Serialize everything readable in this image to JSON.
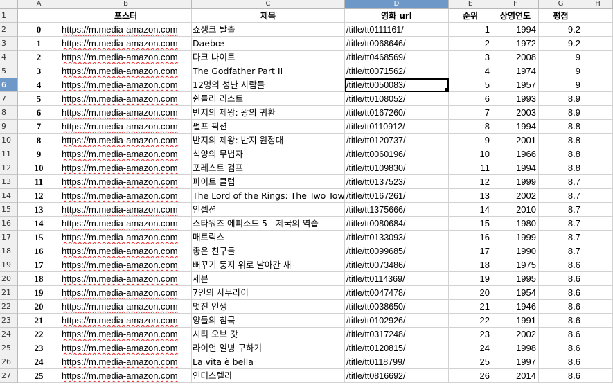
{
  "column_headers": [
    "A",
    "B",
    "C",
    "D",
    "E",
    "F",
    "G",
    "H"
  ],
  "selected_column": "D",
  "header_row": {
    "row_label": "1",
    "a": "",
    "b": "포스터",
    "c": "제목",
    "d": "영화 url",
    "e": "순위",
    "f": "상영연도",
    "g": "평점",
    "h": ""
  },
  "selected_row_label": "6",
  "rows": [
    {
      "label": "2",
      "a": "0",
      "b": "https://m.media-amazon.com",
      "c": "쇼생크 탈출",
      "d": "/title/tt0111161/",
      "e": "1",
      "f": "1994",
      "g": "9.2"
    },
    {
      "label": "3",
      "a": "1",
      "b": "https://m.media-amazon.com",
      "c": "Daebœ",
      "d": "/title/tt0068646/",
      "e": "2",
      "f": "1972",
      "g": "9.2"
    },
    {
      "label": "4",
      "a": "2",
      "b": "https://m.media-amazon.com",
      "c": "다크 나이트",
      "d": "/title/tt0468569/",
      "e": "3",
      "f": "2008",
      "g": "9"
    },
    {
      "label": "5",
      "a": "3",
      "b": "https://m.media-amazon.com",
      "c": "The Godfather Part II",
      "d": "/title/tt0071562/",
      "e": "4",
      "f": "1974",
      "g": "9"
    },
    {
      "label": "6",
      "a": "4",
      "b": "https://m.media-amazon.com",
      "c": "12명의 성난 사람들",
      "d": "/title/tt0050083/",
      "e": "5",
      "f": "1957",
      "g": "9"
    },
    {
      "label": "7",
      "a": "5",
      "b": "https://m.media-amazon.com",
      "c": "쉰들러 리스트",
      "d": "/title/tt0108052/",
      "e": "6",
      "f": "1993",
      "g": "8.9"
    },
    {
      "label": "8",
      "a": "6",
      "b": "https://m.media-amazon.com",
      "c": "반지의 제왕: 왕의 귀환",
      "d": "/title/tt0167260/",
      "e": "7",
      "f": "2003",
      "g": "8.9"
    },
    {
      "label": "9",
      "a": "7",
      "b": "https://m.media-amazon.com",
      "c": "펄프 픽션",
      "d": "/title/tt0110912/",
      "e": "8",
      "f": "1994",
      "g": "8.8"
    },
    {
      "label": "10",
      "a": "8",
      "b": "https://m.media-amazon.com",
      "c": "반지의 제왕: 반지 원정대",
      "d": "/title/tt0120737/",
      "e": "9",
      "f": "2001",
      "g": "8.8"
    },
    {
      "label": "11",
      "a": "9",
      "b": "https://m.media-amazon.com",
      "c": "석양의 무법자",
      "d": "/title/tt0060196/",
      "e": "10",
      "f": "1966",
      "g": "8.8"
    },
    {
      "label": "12",
      "a": "10",
      "b": "https://m.media-amazon.com",
      "c": "포레스트 검프",
      "d": "/title/tt0109830/",
      "e": "11",
      "f": "1994",
      "g": "8.8"
    },
    {
      "label": "13",
      "a": "11",
      "b": "https://m.media-amazon.com",
      "c": "파이트 클럽",
      "d": "/title/tt0137523/",
      "e": "12",
      "f": "1999",
      "g": "8.7"
    },
    {
      "label": "14",
      "a": "12",
      "b": "https://m.media-amazon.com",
      "c": "The Lord of the Rings: The Two Tow",
      "d": "/title/tt0167261/",
      "e": "13",
      "f": "2002",
      "g": "8.7"
    },
    {
      "label": "15",
      "a": "13",
      "b": "https://m.media-amazon.com",
      "c": "인셉션",
      "d": "/title/tt1375666/",
      "e": "14",
      "f": "2010",
      "g": "8.7"
    },
    {
      "label": "16",
      "a": "14",
      "b": "https://m.media-amazon.com",
      "c": "스타워즈 에피소드 5 - 제국의 역습",
      "d": "/title/tt0080684/",
      "e": "15",
      "f": "1980",
      "g": "8.7"
    },
    {
      "label": "17",
      "a": "15",
      "b": "https://m.media-amazon.com",
      "c": "매트릭스",
      "d": "/title/tt0133093/",
      "e": "16",
      "f": "1999",
      "g": "8.7"
    },
    {
      "label": "18",
      "a": "16",
      "b": "https://m.media-amazon.com",
      "c": "좋은 친구들",
      "d": "/title/tt0099685/",
      "e": "17",
      "f": "1990",
      "g": "8.7"
    },
    {
      "label": "19",
      "a": "17",
      "b": "https://m.media-amazon.com",
      "c": "뻐꾸기 둥지 위로 날아간 새",
      "d": "/title/tt0073486/",
      "e": "18",
      "f": "1975",
      "g": "8.6"
    },
    {
      "label": "20",
      "a": "18",
      "b": "https://m.media-amazon.com",
      "c": "세븐",
      "d": "/title/tt0114369/",
      "e": "19",
      "f": "1995",
      "g": "8.6"
    },
    {
      "label": "21",
      "a": "19",
      "b": "https://m.media-amazon.com",
      "c": "7인의 사무라이",
      "d": "/title/tt0047478/",
      "e": "20",
      "f": "1954",
      "g": "8.6"
    },
    {
      "label": "22",
      "a": "20",
      "b": "https://m.media-amazon.com",
      "c": "멋진 인생",
      "d": "/title/tt0038650/",
      "e": "21",
      "f": "1946",
      "g": "8.6"
    },
    {
      "label": "23",
      "a": "21",
      "b": "https://m.media-amazon.com",
      "c": "양들의 침묵",
      "d": "/title/tt0102926/",
      "e": "22",
      "f": "1991",
      "g": "8.6"
    },
    {
      "label": "24",
      "a": "22",
      "b": "https://m.media-amazon.com",
      "c": "시티 오브 갓",
      "d": "/title/tt0317248/",
      "e": "23",
      "f": "2002",
      "g": "8.6"
    },
    {
      "label": "25",
      "a": "23",
      "b": "https://m.media-amazon.com",
      "c": "라이언 일병 구하기",
      "d": "/title/tt0120815/",
      "e": "24",
      "f": "1998",
      "g": "8.6"
    },
    {
      "label": "26",
      "a": "24",
      "b": "https://m.media-amazon.com",
      "c": "La vita è bella",
      "d": "/title/tt0118799/",
      "e": "25",
      "f": "1997",
      "g": "8.6"
    },
    {
      "label": "27",
      "a": "25",
      "b": "https://m.media-amazon.com",
      "c": "인터스텔라",
      "d": "/title/tt0816692/",
      "e": "26",
      "f": "2014",
      "g": "8.6"
    }
  ],
  "colors": {
    "selected_header": "#6e98c8",
    "header_bg": "#f0f0f0",
    "spell_underline": "#e22"
  }
}
